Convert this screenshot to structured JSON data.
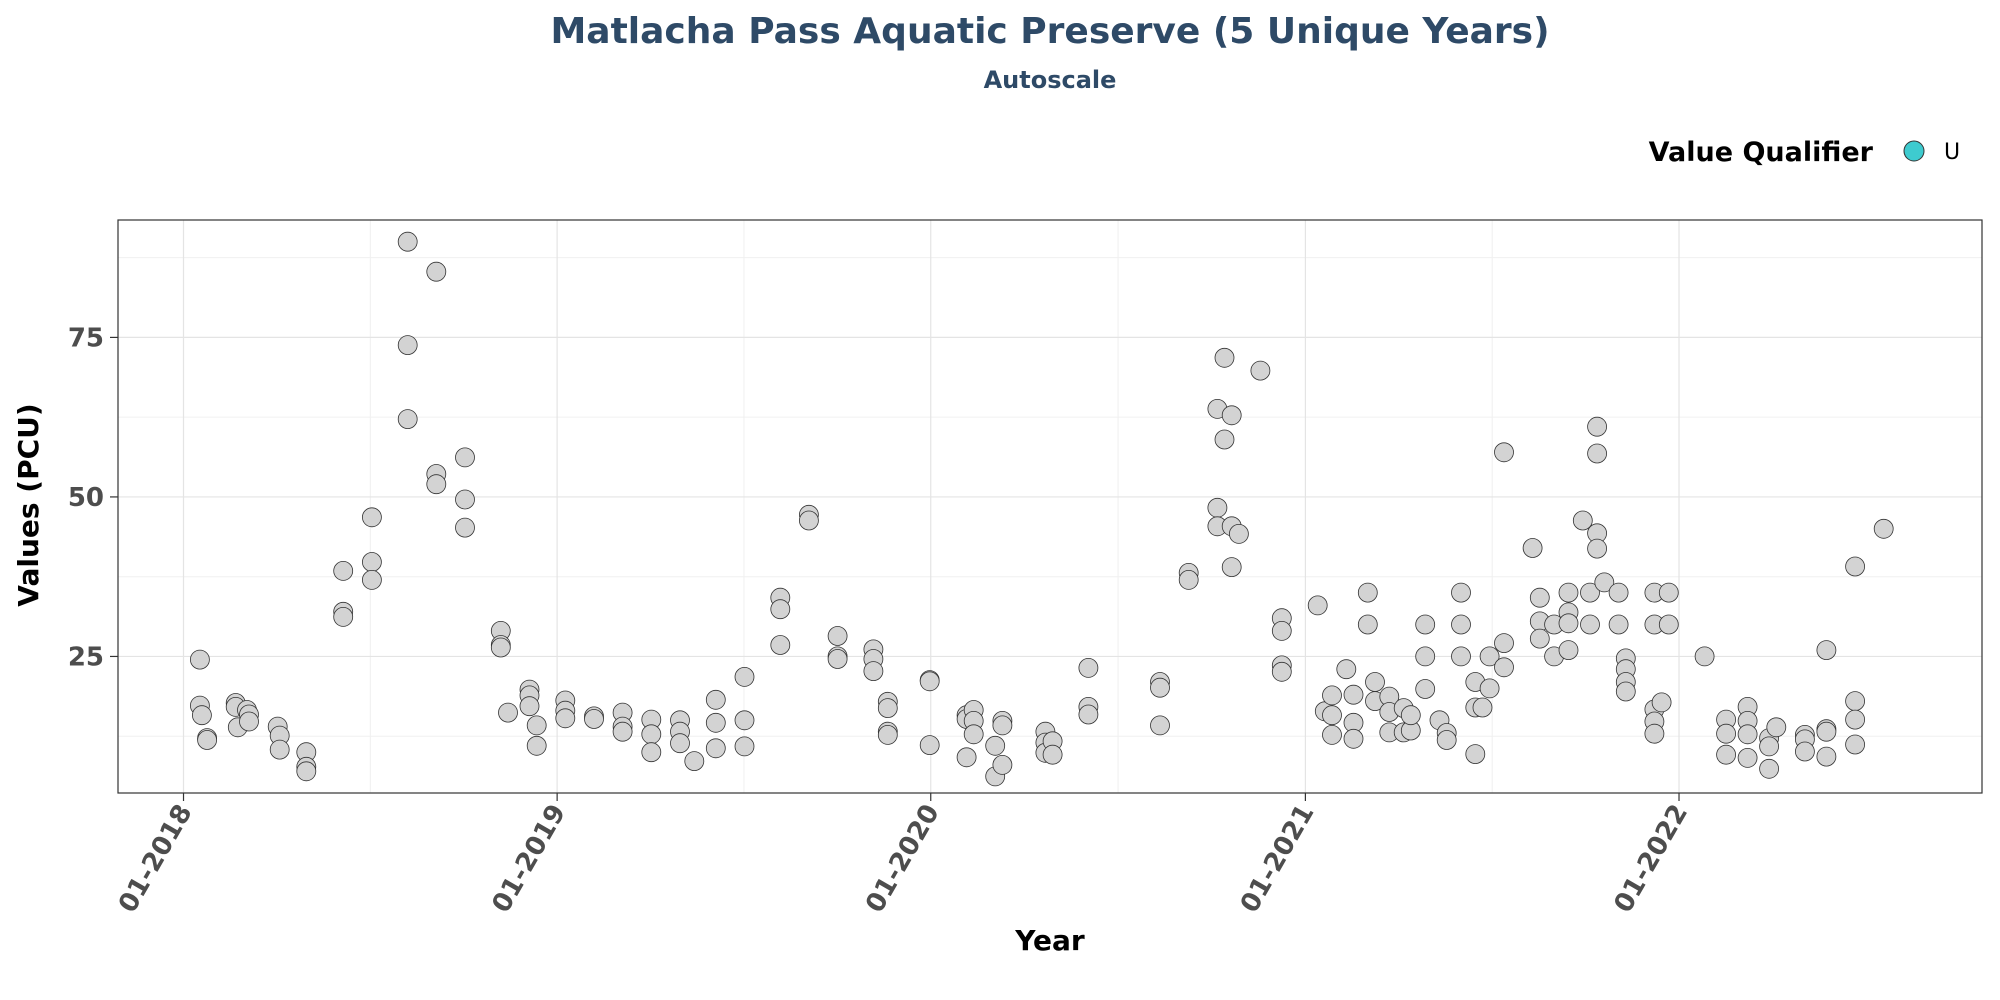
{
  "chart_data": {
    "type": "scatter",
    "title": "Matlacha Pass Aquatic Preserve (5 Unique Years)",
    "subtitle": "Autoscale",
    "xlabel": "Year",
    "ylabel": "Values (PCU)",
    "x_ticks": [
      "2018-01-01",
      "2019-01-01",
      "2020-01-01",
      "2021-01-01",
      "2022-01-01"
    ],
    "x_tick_labels": [
      "01-2018",
      "01-2019",
      "01-2020",
      "01-2021",
      "01-2022"
    ],
    "xlim": [
      "2017-10-29",
      "2022-10-24"
    ],
    "y_ticks": [
      25,
      50,
      75
    ],
    "ylim": [
      3.6,
      93.4
    ],
    "grid": true,
    "legend": {
      "title": "Value Qualifier",
      "placement": "top-right",
      "entries": [
        {
          "label": "U",
          "color": "#3ECBCF"
        }
      ]
    },
    "colors": {
      "point_fill": "#D3D3D3",
      "point_stroke": "#333333",
      "title": "#2E4A67"
    },
    "series": [
      {
        "points": [
          [
            "2018-01-17",
            24.5
          ],
          [
            "2018-01-17",
            17.3
          ],
          [
            "2018-01-19",
            15.8
          ],
          [
            "2018-01-24",
            12.2
          ],
          [
            "2018-01-24",
            11.9
          ],
          [
            "2018-02-21",
            17.7
          ],
          [
            "2018-02-21",
            17.1
          ],
          [
            "2018-02-23",
            13.9
          ],
          [
            "2018-03-04",
            16.6
          ],
          [
            "2018-03-06",
            15.9
          ],
          [
            "2018-03-06",
            14.8
          ],
          [
            "2018-04-03",
            14.0
          ],
          [
            "2018-04-05",
            12.6
          ],
          [
            "2018-04-05",
            10.4
          ],
          [
            "2018-05-01",
            10.0
          ],
          [
            "2018-05-01",
            7.7
          ],
          [
            "2018-05-01",
            7.0
          ],
          [
            "2018-06-06",
            38.4
          ],
          [
            "2018-06-06",
            32.0
          ],
          [
            "2018-06-06",
            31.2
          ],
          [
            "2018-07-04",
            46.8
          ],
          [
            "2018-07-04",
            39.8
          ],
          [
            "2018-07-04",
            37.0
          ],
          [
            "2018-08-08",
            90.0
          ],
          [
            "2018-08-08",
            73.8
          ],
          [
            "2018-08-08",
            62.2
          ],
          [
            "2018-09-05",
            85.3
          ],
          [
            "2018-09-05",
            53.6
          ],
          [
            "2018-09-05",
            52.0
          ],
          [
            "2018-10-03",
            56.2
          ],
          [
            "2018-10-03",
            49.6
          ],
          [
            "2018-10-03",
            45.2
          ],
          [
            "2018-11-07",
            29.0
          ],
          [
            "2018-11-07",
            26.8
          ],
          [
            "2018-11-07",
            26.4
          ],
          [
            "2018-11-14",
            16.2
          ],
          [
            "2018-12-05",
            19.8
          ],
          [
            "2018-12-05",
            18.9
          ],
          [
            "2018-12-05",
            17.2
          ],
          [
            "2018-12-12",
            14.2
          ],
          [
            "2018-12-12",
            11.0
          ],
          [
            "2019-01-09",
            18.1
          ],
          [
            "2019-01-09",
            16.5
          ],
          [
            "2019-01-09",
            15.3
          ],
          [
            "2019-02-06",
            15.6
          ],
          [
            "2019-02-06",
            15.2
          ],
          [
            "2019-03-06",
            16.2
          ],
          [
            "2019-03-06",
            14.0
          ],
          [
            "2019-03-06",
            13.2
          ],
          [
            "2019-04-03",
            15.1
          ],
          [
            "2019-04-03",
            12.8
          ],
          [
            "2019-04-03",
            10.0
          ],
          [
            "2019-05-01",
            15.0
          ],
          [
            "2019-05-01",
            13.2
          ],
          [
            "2019-05-01",
            11.4
          ],
          [
            "2019-05-15",
            8.6
          ],
          [
            "2019-06-05",
            18.2
          ],
          [
            "2019-06-05",
            14.6
          ],
          [
            "2019-06-05",
            10.6
          ],
          [
            "2019-07-03",
            21.8
          ],
          [
            "2019-07-03",
            15.0
          ],
          [
            "2019-07-03",
            10.9
          ],
          [
            "2019-08-07",
            34.2
          ],
          [
            "2019-08-07",
            32.4
          ],
          [
            "2019-08-07",
            26.8
          ],
          [
            "2019-09-04",
            47.2
          ],
          [
            "2019-09-04",
            46.3
          ],
          [
            "2019-10-02",
            28.2
          ],
          [
            "2019-10-02",
            25.0
          ],
          [
            "2019-10-02",
            24.6
          ],
          [
            "2019-11-06",
            26.1
          ],
          [
            "2019-11-06",
            24.6
          ],
          [
            "2019-11-06",
            22.7
          ],
          [
            "2019-11-20",
            17.9
          ],
          [
            "2019-11-20",
            16.9
          ],
          [
            "2019-11-20",
            13.2
          ],
          [
            "2019-11-20",
            12.7
          ],
          [
            "2019-12-31",
            21.3
          ],
          [
            "2019-12-31",
            21.1
          ],
          [
            "2019-12-31",
            11.1
          ],
          [
            "2020-02-05",
            15.8
          ],
          [
            "2020-02-05",
            15.2
          ],
          [
            "2020-02-05",
            9.2
          ],
          [
            "2020-02-12",
            16.6
          ],
          [
            "2020-02-12",
            14.9
          ],
          [
            "2020-02-12",
            12.8
          ],
          [
            "2020-03-04",
            11.0
          ],
          [
            "2020-03-04",
            6.2
          ],
          [
            "2020-03-11",
            14.9
          ],
          [
            "2020-03-11",
            14.2
          ],
          [
            "2020-03-11",
            8.0
          ],
          [
            "2020-04-22",
            13.2
          ],
          [
            "2020-04-22",
            11.5
          ],
          [
            "2020-04-22",
            9.9
          ],
          [
            "2020-04-29",
            11.7
          ],
          [
            "2020-04-29",
            9.6
          ],
          [
            "2020-06-03",
            23.2
          ],
          [
            "2020-06-03",
            17.1
          ],
          [
            "2020-06-03",
            15.9
          ],
          [
            "2020-08-12",
            21.0
          ],
          [
            "2020-08-12",
            20.1
          ],
          [
            "2020-08-12",
            14.2
          ],
          [
            "2020-09-09",
            38.1
          ],
          [
            "2020-09-09",
            37.0
          ],
          [
            "2020-10-07",
            63.8
          ],
          [
            "2020-10-07",
            48.3
          ],
          [
            "2020-10-07",
            45.4
          ],
          [
            "2020-10-14",
            71.8
          ],
          [
            "2020-10-14",
            59.0
          ],
          [
            "2020-10-21",
            62.8
          ],
          [
            "2020-10-21",
            45.4
          ],
          [
            "2020-10-21",
            39.0
          ],
          [
            "2020-10-28",
            44.2
          ],
          [
            "2020-11-18",
            69.8
          ],
          [
            "2020-12-09",
            31.0
          ],
          [
            "2020-12-09",
            29.0
          ],
          [
            "2020-12-09",
            23.6
          ],
          [
            "2020-12-09",
            22.6
          ],
          [
            "2021-01-13",
            33.0
          ],
          [
            "2021-01-20",
            16.4
          ],
          [
            "2021-01-27",
            18.9
          ],
          [
            "2021-01-27",
            15.8
          ],
          [
            "2021-01-27",
            12.7
          ],
          [
            "2021-02-10",
            23.0
          ],
          [
            "2021-02-17",
            19.0
          ],
          [
            "2021-02-17",
            14.6
          ],
          [
            "2021-02-17",
            12.1
          ],
          [
            "2021-03-03",
            35.0
          ],
          [
            "2021-03-03",
            30.0
          ],
          [
            "2021-03-10",
            21.0
          ],
          [
            "2021-03-10",
            18.0
          ],
          [
            "2021-03-24",
            18.7
          ],
          [
            "2021-03-24",
            16.3
          ],
          [
            "2021-03-24",
            13.1
          ],
          [
            "2021-04-07",
            16.9
          ],
          [
            "2021-04-07",
            13.1
          ],
          [
            "2021-04-14",
            13.4
          ],
          [
            "2021-04-14",
            15.8
          ],
          [
            "2021-04-28",
            30.0
          ],
          [
            "2021-04-28",
            25.0
          ],
          [
            "2021-04-28",
            19.9
          ],
          [
            "2021-05-12",
            15.0
          ],
          [
            "2021-05-19",
            13.0
          ],
          [
            "2021-05-19",
            11.9
          ],
          [
            "2021-06-02",
            35.0
          ],
          [
            "2021-06-02",
            30.0
          ],
          [
            "2021-06-02",
            25.0
          ],
          [
            "2021-06-16",
            21.0
          ],
          [
            "2021-06-16",
            17.0
          ],
          [
            "2021-06-16",
            9.7
          ],
          [
            "2021-06-23",
            17.0
          ],
          [
            "2021-06-30",
            25.0
          ],
          [
            "2021-06-30",
            20.0
          ],
          [
            "2021-07-14",
            57.0
          ],
          [
            "2021-07-14",
            27.1
          ],
          [
            "2021-07-14",
            23.3
          ],
          [
            "2021-08-11",
            42.0
          ],
          [
            "2021-08-18",
            34.2
          ],
          [
            "2021-08-18",
            30.5
          ],
          [
            "2021-08-18",
            27.8
          ],
          [
            "2021-09-01",
            30.0
          ],
          [
            "2021-09-01",
            25.0
          ],
          [
            "2021-09-15",
            35.0
          ],
          [
            "2021-09-15",
            31.9
          ],
          [
            "2021-09-15",
            30.2
          ],
          [
            "2021-09-15",
            26.0
          ],
          [
            "2021-09-29",
            46.3
          ],
          [
            "2021-10-06",
            35.0
          ],
          [
            "2021-10-06",
            30.0
          ],
          [
            "2021-10-13",
            61.0
          ],
          [
            "2021-10-13",
            56.8
          ],
          [
            "2021-10-13",
            44.3
          ],
          [
            "2021-10-13",
            41.9
          ],
          [
            "2021-10-20",
            36.6
          ],
          [
            "2021-11-03",
            35.0
          ],
          [
            "2021-11-03",
            30.0
          ],
          [
            "2021-11-10",
            24.7
          ],
          [
            "2021-11-10",
            23.0
          ],
          [
            "2021-11-10",
            21.0
          ],
          [
            "2021-11-10",
            19.5
          ],
          [
            "2021-12-08",
            35.0
          ],
          [
            "2021-12-08",
            30.0
          ],
          [
            "2021-12-08",
            16.7
          ],
          [
            "2021-12-08",
            14.8
          ],
          [
            "2021-12-08",
            12.9
          ],
          [
            "2021-12-15",
            17.8
          ],
          [
            "2021-12-22",
            35.0
          ],
          [
            "2021-12-22",
            30.0
          ],
          [
            "2022-01-26",
            25.0
          ],
          [
            "2022-02-16",
            15.1
          ],
          [
            "2022-02-16",
            12.9
          ],
          [
            "2022-02-16",
            9.6
          ],
          [
            "2022-03-09",
            17.1
          ],
          [
            "2022-03-09",
            14.9
          ],
          [
            "2022-03-09",
            12.8
          ],
          [
            "2022-03-09",
            9.1
          ],
          [
            "2022-03-30",
            12.2
          ],
          [
            "2022-03-30",
            10.9
          ],
          [
            "2022-03-30",
            7.4
          ],
          [
            "2022-04-06",
            13.9
          ],
          [
            "2022-05-04",
            12.7
          ],
          [
            "2022-05-04",
            12.0
          ],
          [
            "2022-05-04",
            10.1
          ],
          [
            "2022-05-25",
            26.0
          ],
          [
            "2022-05-25",
            13.6
          ],
          [
            "2022-05-25",
            13.2
          ],
          [
            "2022-05-25",
            9.3
          ],
          [
            "2022-06-22",
            39.1
          ],
          [
            "2022-06-22",
            18.0
          ],
          [
            "2022-06-22",
            15.1
          ],
          [
            "2022-06-22",
            11.2
          ],
          [
            "2022-07-20",
            45.0
          ]
        ]
      }
    ]
  }
}
